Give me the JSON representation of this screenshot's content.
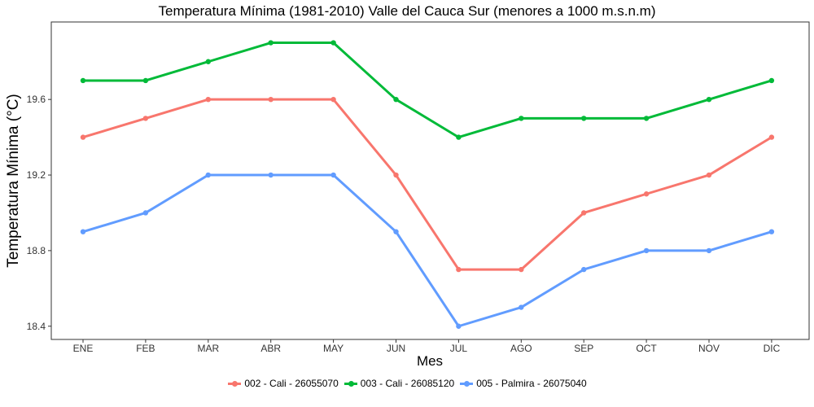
{
  "chart_data": {
    "type": "line",
    "title": "Temperatura Mínima (1981-2010) Valle del Cauca Sur (menores a 1000 m.s.n.m)",
    "xlabel": "Mes",
    "ylabel": "Temperatura Mínima (°C)",
    "categories": [
      "ENE",
      "FEB",
      "MAR",
      "ABR",
      "MAY",
      "JUN",
      "JUL",
      "AGO",
      "SEP",
      "OCT",
      "NOV",
      "DIC"
    ],
    "yticks": [
      "18.4",
      "18.8",
      "19.2",
      "19.6"
    ],
    "ylim": [
      18.33,
      20.01
    ],
    "grid": false,
    "legend_position": "bottom",
    "series": [
      {
        "name": "002 - Cali - 26055070",
        "color": "#F8766D",
        "values": [
          19.4,
          19.5,
          19.6,
          19.6,
          19.6,
          19.2,
          18.7,
          18.7,
          19.0,
          19.1,
          19.2,
          19.4
        ]
      },
      {
        "name": "003 - Cali - 26085120",
        "color": "#00BA38",
        "values": [
          19.7,
          19.7,
          19.8,
          19.9,
          19.9,
          19.6,
          19.4,
          19.5,
          19.5,
          19.5,
          19.6,
          19.7
        ]
      },
      {
        "name": "005 - Palmira - 26075040",
        "color": "#619CFF",
        "values": [
          18.9,
          19.0,
          19.2,
          19.2,
          19.2,
          18.9,
          18.4,
          18.5,
          18.7,
          18.8,
          18.8,
          18.9
        ]
      }
    ]
  }
}
